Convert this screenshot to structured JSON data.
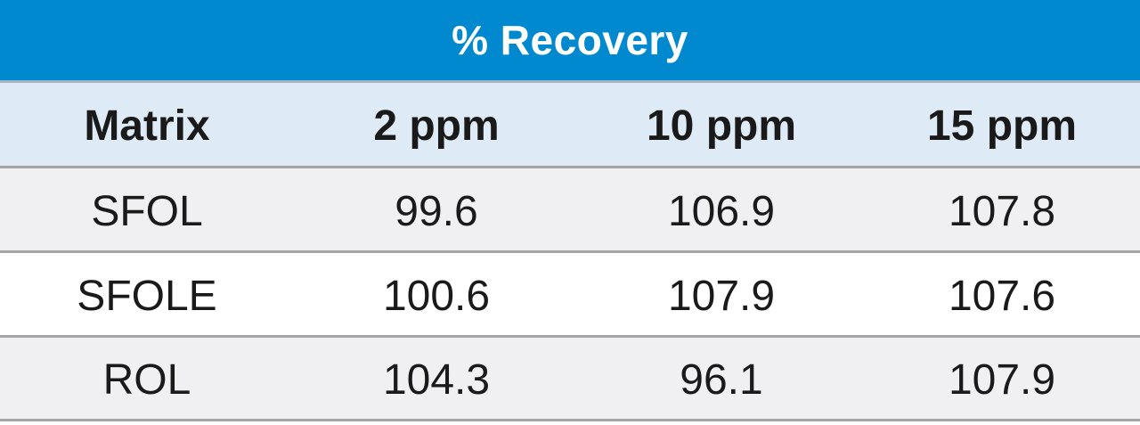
{
  "chart_data": {
    "type": "table",
    "title": "% Recovery",
    "columns": [
      "Matrix",
      "2 ppm",
      "10 ppm",
      "15 ppm"
    ],
    "rows": [
      [
        "SFOL",
        "99.6",
        "106.9",
        "107.8"
      ],
      [
        "SFOLE",
        "100.6",
        "107.9",
        "107.6"
      ],
      [
        "ROL",
        "104.3",
        "96.1",
        "107.9"
      ]
    ]
  },
  "colors": {
    "title_bar": "#0189cf",
    "header_row": "#deebf7",
    "alt_row": "#f0f0f2",
    "divider": "#a4a4a4"
  }
}
